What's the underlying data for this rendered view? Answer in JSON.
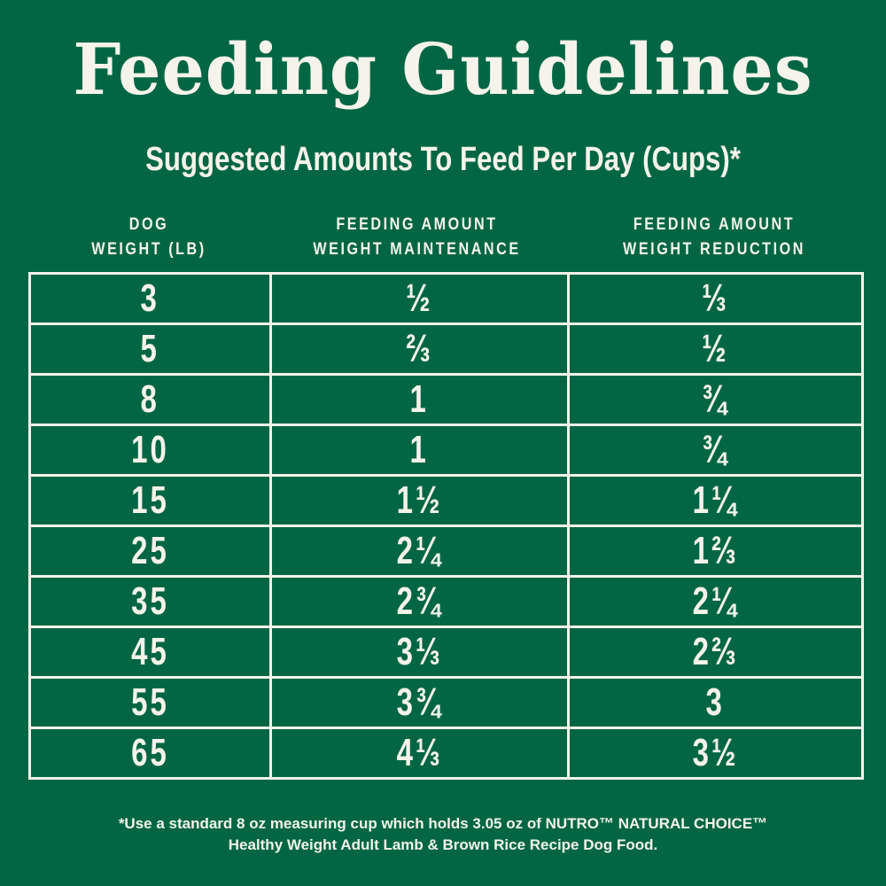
{
  "title": "Feeding Guidelines",
  "subtitle": "Suggested Amounts To Feed Per Day (Cups)*",
  "colors": {
    "background": "#026644",
    "text": "#f5f3ea"
  },
  "table": {
    "headers": [
      {
        "line1": "DOG",
        "line2": "WEIGHT (LB)"
      },
      {
        "line1": "FEEDING AMOUNT",
        "line2": "WEIGHT MAINTENANCE"
      },
      {
        "line1": "FEEDING AMOUNT",
        "line2": "WEIGHT REDUCTION"
      }
    ],
    "rows": [
      {
        "weight": "3",
        "maintenance": "½",
        "reduction": "⅓"
      },
      {
        "weight": "5",
        "maintenance": "⅔",
        "reduction": "½"
      },
      {
        "weight": "8",
        "maintenance": "1",
        "reduction": "¾"
      },
      {
        "weight": "10",
        "maintenance": "1",
        "reduction": "¾"
      },
      {
        "weight": "15",
        "maintenance": "1½",
        "reduction": "1¼"
      },
      {
        "weight": "25",
        "maintenance": "2¼",
        "reduction": "1⅔"
      },
      {
        "weight": "35",
        "maintenance": "2¾",
        "reduction": "2¼"
      },
      {
        "weight": "45",
        "maintenance": "3⅓",
        "reduction": "2⅔"
      },
      {
        "weight": "55",
        "maintenance": "3¾",
        "reduction": "3"
      },
      {
        "weight": "65",
        "maintenance": "4⅓",
        "reduction": "3½"
      }
    ]
  },
  "footnote": {
    "line1": "*Use a standard 8 oz measuring cup which holds 3.05 oz of NUTRO™ NATURAL CHOICE™",
    "line2": "Healthy Weight Adult Lamb & Brown Rice Recipe Dog Food."
  }
}
